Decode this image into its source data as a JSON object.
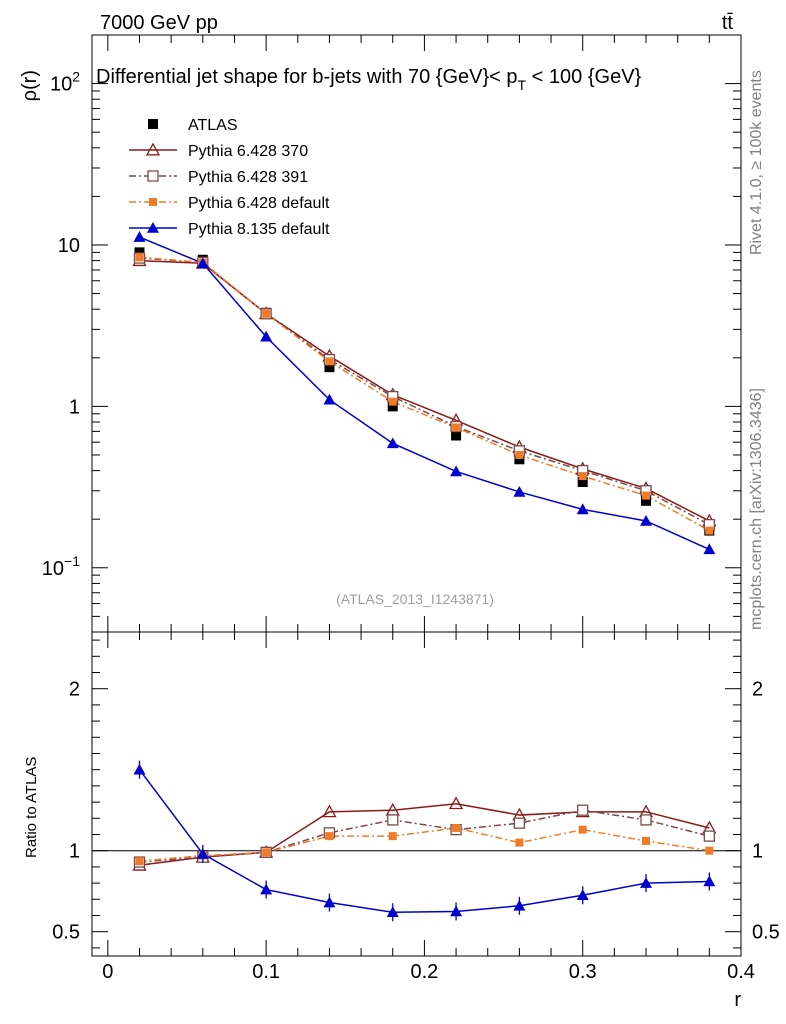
{
  "header": {
    "left": "7000 GeV pp",
    "right": "tt̄"
  },
  "side_labels": {
    "rivet": "Rivet 4.1.0, ≥ 100k events",
    "mcplots": "mcplots.cern.ch [arXiv:1306.3436]"
  },
  "watermark": "(ATLAS_2013_I1243871)",
  "chart_data": [
    {
      "type": "line",
      "title": "Differential jet shape for b-jets with 70 {GeV}< p_T < 100 {GeV}",
      "title_parts": {
        "main": "Differential jet shape for b-jets with 70 {GeV}< p",
        "sub": "T",
        "tail": " < 100 {GeV}"
      },
      "xlabel": "r",
      "ylabel": "ρ(r)",
      "xlim": [
        -0.01,
        0.4
      ],
      "ylim": [
        0.04,
        200
      ],
      "yscale": "log",
      "y_tick_labels": [
        {
          "value": 100,
          "base": "10",
          "exp": "2"
        },
        {
          "value": 10,
          "base": "10",
          "exp": ""
        },
        {
          "value": 1,
          "base": "1",
          "exp": ""
        },
        {
          "value": 0.1,
          "base": "10",
          "exp": "−1"
        }
      ],
      "x": [
        0.02,
        0.06,
        0.1,
        0.14,
        0.18,
        0.22,
        0.26,
        0.3,
        0.34,
        0.38
      ],
      "series": [
        {
          "name": "ATLAS",
          "color": "#000000",
          "marker": "filled-square",
          "line": "none",
          "values": [
            9.0,
            8.1,
            3.8,
            1.75,
            1.0,
            0.66,
            0.47,
            0.34,
            0.26,
            0.17
          ]
        },
        {
          "name": "Pythia 6.428 370",
          "color": "#8b1a1a",
          "marker": "open-triangle",
          "line": "solid",
          "values": [
            8.0,
            7.7,
            3.75,
            2.05,
            1.18,
            0.82,
            0.56,
            0.41,
            0.31,
            0.195
          ]
        },
        {
          "name": "Pythia 6.428 391",
          "color": "#7a4a4a",
          "marker": "open-square",
          "line": "dashdot",
          "values": [
            8.3,
            7.8,
            3.75,
            1.95,
            1.15,
            0.75,
            0.53,
            0.4,
            0.3,
            0.185
          ]
        },
        {
          "name": "Pythia 6.428 default",
          "color": "#f07c28",
          "marker": "filled-small-square",
          "line": "dashdot",
          "values": [
            8.4,
            7.8,
            3.75,
            1.9,
            1.07,
            0.74,
            0.5,
            0.37,
            0.28,
            0.17
          ]
        },
        {
          "name": "Pythia 8.135 default",
          "color": "#0000d0",
          "marker": "filled-triangle",
          "line": "solid",
          "values": [
            11.2,
            7.7,
            2.7,
            1.1,
            0.59,
            0.395,
            0.295,
            0.23,
            0.195,
            0.13
          ]
        }
      ]
    },
    {
      "type": "line",
      "title": "",
      "xlabel": "r",
      "ylabel": "Ratio to ATLAS",
      "xlim": [
        -0.01,
        0.4
      ],
      "ylim": [
        0.35,
        2.35
      ],
      "x_tick_labels": [
        "0",
        "0.1",
        "0.2",
        "0.3",
        "0.4"
      ],
      "y_tick_labels": [
        "0.5",
        "1",
        "2"
      ],
      "x": [
        0.02,
        0.06,
        0.1,
        0.14,
        0.18,
        0.22,
        0.26,
        0.3,
        0.34,
        0.38
      ],
      "series": [
        {
          "name": "Pythia 6.428 370",
          "color": "#8b1a1a",
          "marker": "open-triangle",
          "line": "solid",
          "values": [
            0.91,
            0.96,
            0.99,
            1.24,
            1.25,
            1.29,
            1.22,
            1.24,
            1.24,
            1.14
          ]
        },
        {
          "name": "Pythia 6.428 391",
          "color": "#7a4a4a",
          "marker": "open-square",
          "line": "dashdot",
          "values": [
            0.93,
            0.96,
            0.99,
            1.11,
            1.19,
            1.13,
            1.17,
            1.25,
            1.19,
            1.09
          ]
        },
        {
          "name": "Pythia 6.428 default",
          "color": "#f07c28",
          "marker": "filled-small-square",
          "line": "dashdot",
          "values": [
            0.935,
            0.97,
            0.99,
            1.09,
            1.09,
            1.14,
            1.05,
            1.13,
            1.06,
            1.0
          ]
        },
        {
          "name": "Pythia 8.135 default",
          "color": "#0000d0",
          "marker": "filled-triangle",
          "line": "solid",
          "values": [
            1.5,
            0.98,
            0.76,
            0.68,
            0.62,
            0.625,
            0.66,
            0.725,
            0.8,
            0.81
          ]
        }
      ]
    }
  ]
}
